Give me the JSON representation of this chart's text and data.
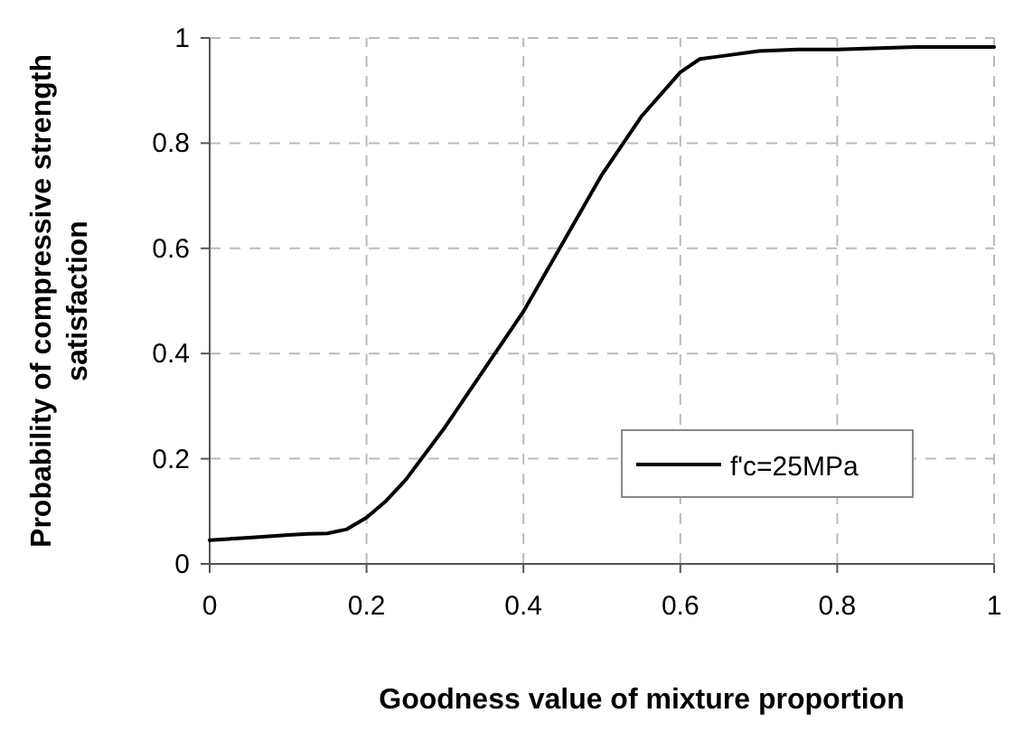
{
  "chart_data": {
    "type": "line",
    "xlabel": "Goodness value of mixture proportion",
    "ylabel": "Probability of compressive strength satisfaction",
    "xlim": [
      0,
      1
    ],
    "ylim": [
      0,
      1
    ],
    "xticks": [
      0,
      0.2,
      0.4,
      0.6,
      0.8,
      1
    ],
    "yticks": [
      0,
      0.2,
      0.4,
      0.6,
      0.8,
      1
    ],
    "grid": true,
    "legend": "bottom right",
    "marker": "none",
    "line_style": "solid",
    "x": [
      0,
      0.05,
      0.1,
      0.125,
      0.15,
      0.175,
      0.2,
      0.225,
      0.25,
      0.3,
      0.35,
      0.4,
      0.45,
      0.5,
      0.55,
      0.6,
      0.625,
      0.65,
      0.7,
      0.75,
      0.8,
      0.9,
      1
    ],
    "series": [
      {
        "name": "f'c=25MPa",
        "color": "#000000",
        "values": [
          0.045,
          0.05,
          0.055,
          0.057,
          0.058,
          0.066,
          0.088,
          0.12,
          0.16,
          0.26,
          0.37,
          0.48,
          0.61,
          0.74,
          0.85,
          0.935,
          0.96,
          0.965,
          0.975,
          0.978,
          0.978,
          0.983,
          0.983
        ]
      }
    ]
  }
}
